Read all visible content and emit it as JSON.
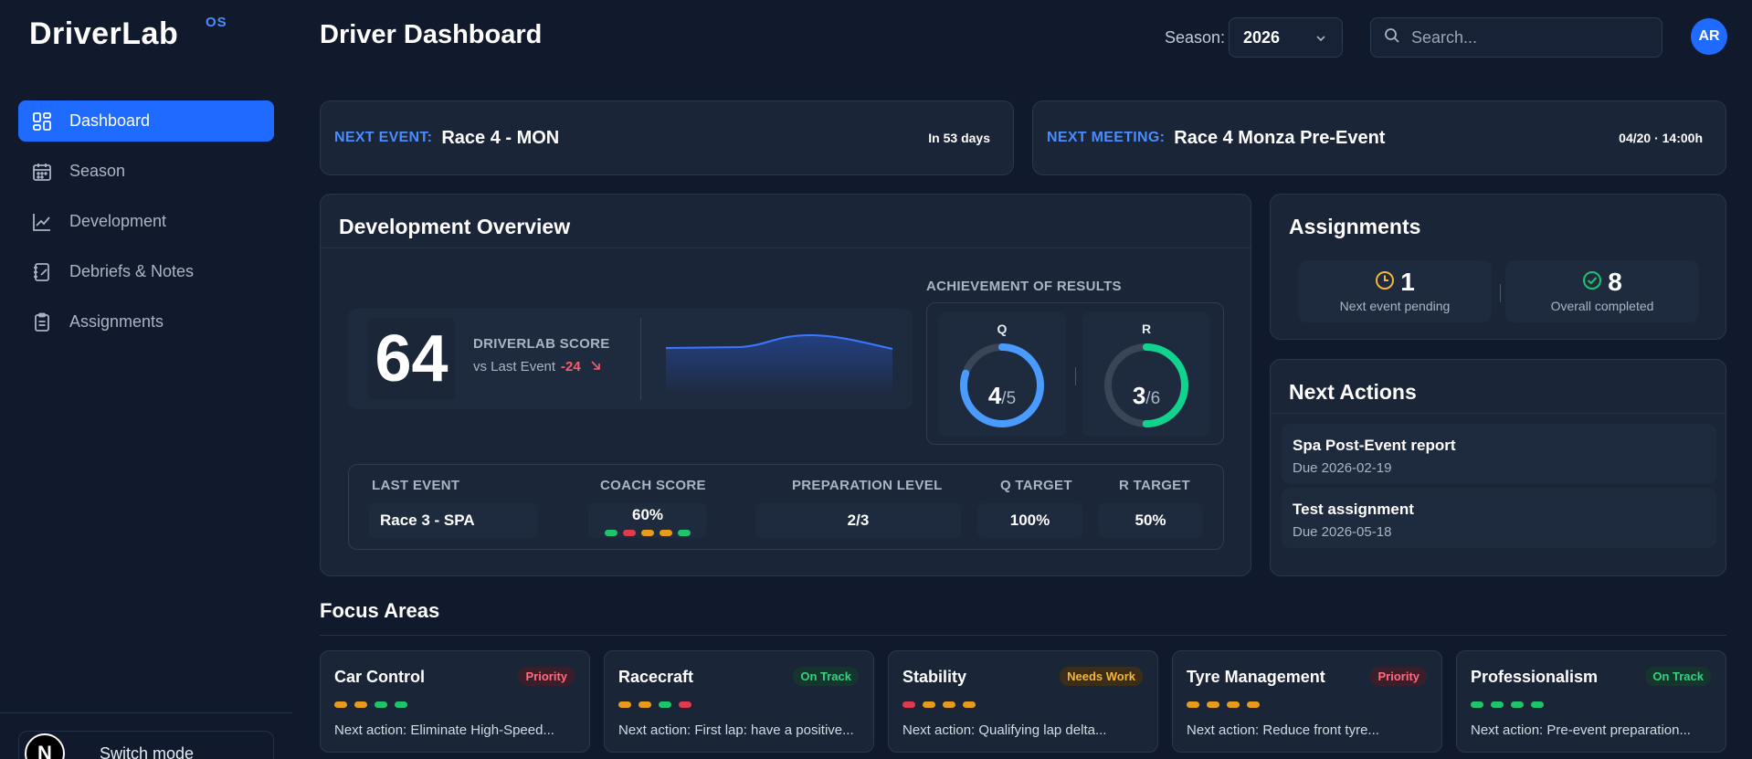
{
  "brand": {
    "name": "DriverLab",
    "sup": "OS"
  },
  "nav": [
    {
      "label": "Dashboard",
      "icon": "dashboard-icon",
      "active": true
    },
    {
      "label": "Season",
      "icon": "calendar-icon"
    },
    {
      "label": "Development",
      "icon": "chart-line-icon"
    },
    {
      "label": "Debriefs & Notes",
      "icon": "notebook-icon"
    },
    {
      "label": "Assignments",
      "icon": "clipboard-icon"
    }
  ],
  "switch_mode": {
    "label": "Switch mode",
    "logo": "N"
  },
  "header": {
    "title": "Driver Dashboard",
    "season_label": "Season:",
    "season_value": "2026",
    "search_placeholder": "Search...",
    "avatar": "AR"
  },
  "next_event": {
    "label": "NEXT EVENT:",
    "value": "Race 4 - MON",
    "countdown": "In 53 days"
  },
  "next_meeting": {
    "label": "NEXT MEETING:",
    "value": "Race 4 Monza Pre-Event",
    "when": "04/20 · 14:00h"
  },
  "development": {
    "title": "Development Overview",
    "score": "64",
    "score_label": "DRIVERLAB SCORE",
    "vs_label": "vs Last Event",
    "delta": "-24",
    "achievement_label": "ACHIEVEMENT OF RESULTS",
    "q": {
      "label": "Q",
      "value": "4",
      "den": "/5",
      "fraction": 0.8
    },
    "r": {
      "label": "R",
      "value": "3",
      "den": "/6",
      "fraction": 0.5
    },
    "last_event": {
      "headers": [
        "LAST EVENT",
        "COACH SCORE",
        "PREPARATION LEVEL",
        "Q TARGET",
        "R TARGET"
      ],
      "event": "Race 3 - SPA",
      "coach_score": "60%",
      "preparation": "2/3",
      "q_target": "100%",
      "r_target": "50%"
    }
  },
  "assignments": {
    "title": "Assignments",
    "pending": {
      "value": "1",
      "label": "Next event pending"
    },
    "completed": {
      "value": "8",
      "label": "Overall completed"
    }
  },
  "next_actions": {
    "title": "Next Actions",
    "items": [
      {
        "title": "Spa Post-Event report",
        "due": "Due 2026-02-19"
      },
      {
        "title": "Test assignment",
        "due": "Due 2026-05-18"
      }
    ]
  },
  "focus": {
    "title": "Focus Areas",
    "cards": [
      {
        "title": "Car Control",
        "badge": "Priority",
        "next": "Next action: Eliminate High-Speed..."
      },
      {
        "title": "Racecraft",
        "badge": "On Track",
        "next": "Next action: First lap: have a positive..."
      },
      {
        "title": "Stability",
        "badge": "Needs Work",
        "next": "Next action: Qualifying lap delta..."
      },
      {
        "title": "Tyre Management",
        "badge": "Priority",
        "next": "Next action: Reduce front tyre..."
      },
      {
        "title": "Professionalism",
        "badge": "On Track",
        "next": "Next action: Pre-event preparation..."
      }
    ]
  },
  "colors": {
    "accent": "#1f6bff",
    "green": "#1fc46a",
    "red": "#e03b4c",
    "amber": "#e69b1a",
    "q_ring": "#4a9bff",
    "r_ring": "#10d48e"
  }
}
